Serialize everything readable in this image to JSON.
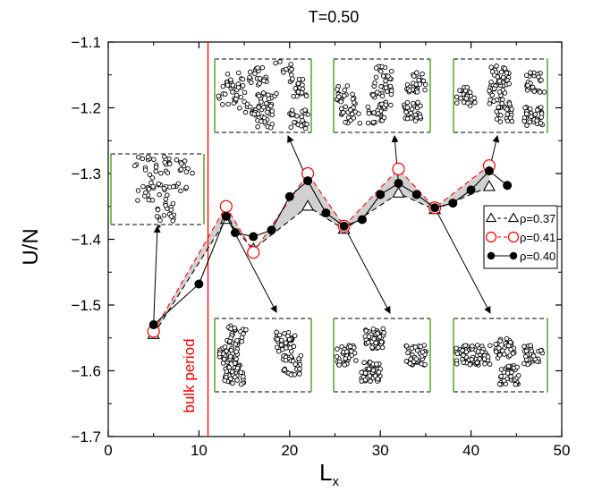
{
  "chart_data": {
    "type": "line",
    "title": "T=0.50",
    "xlabel": "L",
    "xlabel_sub": "x",
    "ylabel": "U/N",
    "xlim": [
      0,
      50
    ],
    "ylim": [
      -1.7,
      -1.1
    ],
    "xticks": [
      0,
      10,
      20,
      30,
      40,
      50
    ],
    "yticks": [
      -1.7,
      -1.6,
      -1.5,
      -1.4,
      -1.3,
      -1.2,
      -1.1
    ],
    "xtick_labels": [
      "0",
      "10",
      "20",
      "30",
      "40",
      "50"
    ],
    "ytick_labels": [
      "−1.7",
      "−1.6",
      "−1.5",
      "−1.4",
      "−1.3",
      "−1.2",
      "−1.1"
    ],
    "legend_placement": "right",
    "series": [
      {
        "name": "ρ=0.37",
        "marker": "triangle-open",
        "line": "dashed",
        "color": "#000000",
        "points": [
          [
            5,
            -1.545
          ],
          [
            13,
            -1.37
          ],
          [
            16,
            -1.415
          ],
          [
            22,
            -1.35
          ],
          [
            26,
            -1.385
          ],
          [
            32,
            -1.33
          ],
          [
            36,
            -1.355
          ],
          [
            42,
            -1.32
          ]
        ]
      },
      {
        "name": "ρ=0.41",
        "marker": "circle-open",
        "line": "dashed",
        "color": "#ff0000",
        "points": [
          [
            5,
            -1.54
          ],
          [
            13,
            -1.35
          ],
          [
            16,
            -1.42
          ],
          [
            22,
            -1.3
          ],
          [
            26,
            -1.38
          ],
          [
            32,
            -1.293
          ],
          [
            36,
            -1.352
          ],
          [
            42,
            -1.288
          ]
        ]
      },
      {
        "name": "ρ=0.40",
        "marker": "circle-filled",
        "line": "solid",
        "color": "#000000",
        "points": [
          [
            5,
            -1.53
          ],
          [
            10,
            -1.468
          ],
          [
            13,
            -1.365
          ],
          [
            14,
            -1.39
          ],
          [
            16,
            -1.396
          ],
          [
            18,
            -1.386
          ],
          [
            20,
            -1.335
          ],
          [
            22,
            -1.311
          ],
          [
            24,
            -1.36
          ],
          [
            26,
            -1.38
          ],
          [
            28,
            -1.37
          ],
          [
            30,
            -1.332
          ],
          [
            32,
            -1.315
          ],
          [
            34,
            -1.332
          ],
          [
            36,
            -1.352
          ],
          [
            38,
            -1.345
          ],
          [
            40,
            -1.325
          ],
          [
            42,
            -1.296
          ],
          [
            44,
            -1.318
          ]
        ]
      }
    ],
    "annotations": {
      "bulk_period": {
        "x": 11,
        "label": "bulk period",
        "color": "#ff0000"
      }
    },
    "insets": [
      {
        "name": "inset-small-left",
        "pattern": "stripes"
      },
      {
        "name": "inset-top-1",
        "pattern": "cluster"
      },
      {
        "name": "inset-top-2",
        "pattern": "stripes"
      },
      {
        "name": "inset-top-3",
        "pattern": "stripes"
      },
      {
        "name": "inset-bottom-1",
        "pattern": "cluster"
      },
      {
        "name": "inset-bottom-2",
        "pattern": "stripes"
      },
      {
        "name": "inset-bottom-3",
        "pattern": "stripes"
      }
    ],
    "colors": {
      "boundary": "#5aa02c",
      "shade": "#d0d0d0"
    }
  }
}
